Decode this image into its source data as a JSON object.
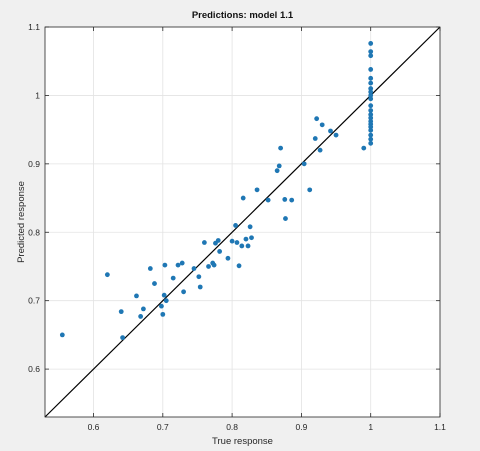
{
  "chart_data": {
    "type": "scatter",
    "title": "Predictions: model 1.1",
    "xlabel": "True response",
    "ylabel": "Predicted response",
    "xlim": [
      0.53,
      1.1
    ],
    "ylim": [
      0.53,
      1.1
    ],
    "x_ticks": [
      0.6,
      0.7,
      0.8,
      0.9,
      1,
      1.1
    ],
    "x_tick_labels": [
      "0.6",
      "0.7",
      "0.8",
      "0.9",
      "1",
      "1.1"
    ],
    "y_ticks": [
      0.6,
      0.7,
      0.8,
      0.9,
      1,
      1.1
    ],
    "y_tick_labels": [
      "0.6",
      "0.7",
      "0.8",
      "0.9",
      "1",
      "1.1"
    ],
    "grid": true,
    "legend": "none",
    "reference_line": {
      "from": [
        0.53,
        0.53
      ],
      "to": [
        1.1,
        1.1
      ],
      "color": "#000000"
    },
    "series": [
      {
        "marker_color": "#1f77b4",
        "points": [
          [
            0.555,
            0.65
          ],
          [
            0.62,
            0.738
          ],
          [
            0.64,
            0.684
          ],
          [
            0.642,
            0.646
          ],
          [
            0.662,
            0.707
          ],
          [
            0.668,
            0.677
          ],
          [
            0.672,
            0.688
          ],
          [
            0.682,
            0.747
          ],
          [
            0.688,
            0.725
          ],
          [
            0.698,
            0.692
          ],
          [
            0.7,
            0.68
          ],
          [
            0.702,
            0.708
          ],
          [
            0.703,
            0.752
          ],
          [
            0.705,
            0.7
          ],
          [
            0.715,
            0.733
          ],
          [
            0.722,
            0.752
          ],
          [
            0.728,
            0.755
          ],
          [
            0.73,
            0.713
          ],
          [
            0.745,
            0.747
          ],
          [
            0.752,
            0.735
          ],
          [
            0.754,
            0.72
          ],
          [
            0.76,
            0.785
          ],
          [
            0.766,
            0.75
          ],
          [
            0.772,
            0.755
          ],
          [
            0.774,
            0.752
          ],
          [
            0.776,
            0.784
          ],
          [
            0.78,
            0.788
          ],
          [
            0.782,
            0.772
          ],
          [
            0.794,
            0.762
          ],
          [
            0.8,
            0.787
          ],
          [
            0.805,
            0.81
          ],
          [
            0.807,
            0.785
          ],
          [
            0.81,
            0.751
          ],
          [
            0.814,
            0.78
          ],
          [
            0.816,
            0.85
          ],
          [
            0.82,
            0.79
          ],
          [
            0.823,
            0.78
          ],
          [
            0.826,
            0.808
          ],
          [
            0.828,
            0.792
          ],
          [
            0.836,
            0.862
          ],
          [
            0.852,
            0.847
          ],
          [
            0.865,
            0.89
          ],
          [
            0.868,
            0.897
          ],
          [
            0.87,
            0.923
          ],
          [
            0.877,
            0.82
          ],
          [
            0.876,
            0.848
          ],
          [
            0.886,
            0.847
          ],
          [
            0.904,
            0.9
          ],
          [
            0.912,
            0.862
          ],
          [
            0.92,
            0.937
          ],
          [
            0.922,
            0.966
          ],
          [
            0.927,
            0.92
          ],
          [
            0.93,
            0.957
          ],
          [
            0.942,
            0.948
          ],
          [
            0.95,
            0.942
          ],
          [
            0.99,
            0.923
          ],
          [
            1,
            1.076
          ],
          [
            1,
            1.064
          ],
          [
            1,
            1.058
          ],
          [
            1,
            1.038
          ],
          [
            1,
            1.025
          ],
          [
            1,
            1.018
          ],
          [
            1,
            1.01
          ],
          [
            1,
            1.005
          ],
          [
            1,
            1.0
          ],
          [
            1,
            0.995
          ],
          [
            1,
            0.985
          ],
          [
            1,
            0.978
          ],
          [
            1,
            0.972
          ],
          [
            1,
            0.967
          ],
          [
            1,
            0.962
          ],
          [
            1,
            0.958
          ],
          [
            1,
            0.954
          ],
          [
            1,
            0.949
          ],
          [
            1,
            0.942
          ],
          [
            1,
            0.936
          ],
          [
            1,
            0.93
          ]
        ]
      }
    ]
  }
}
